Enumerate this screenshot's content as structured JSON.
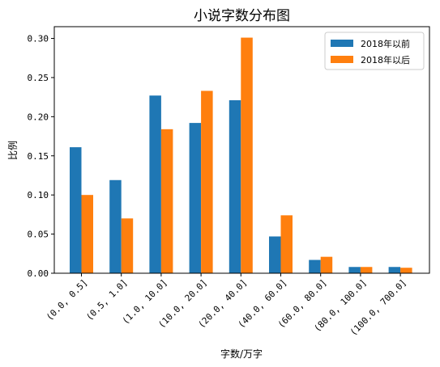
{
  "chart_data": {
    "type": "bar",
    "title": "小说字数分布图",
    "xlabel": "字数/万字",
    "ylabel": "比例",
    "ylim": [
      0,
      0.315
    ],
    "yticks": [
      "0.00",
      "0.05",
      "0.10",
      "0.15",
      "0.20",
      "0.25",
      "0.30"
    ],
    "categories": [
      "(0.0, 0.5]",
      "(0.5, 1.0]",
      "(1.0, 10.0]",
      "(10.0, 20.0]",
      "(20.0, 40.0]",
      "(40.0, 60.0]",
      "(60.0, 80.0]",
      "(80.0, 100.0]",
      "(100.0, 700.0]"
    ],
    "series": [
      {
        "name": "2018年以前",
        "color": "#1f77b4",
        "values": [
          0.161,
          0.119,
          0.227,
          0.192,
          0.221,
          0.047,
          0.017,
          0.008,
          0.008
        ]
      },
      {
        "name": "2018年以后",
        "color": "#ff7f0e",
        "values": [
          0.1,
          0.07,
          0.184,
          0.233,
          0.301,
          0.074,
          0.021,
          0.008,
          0.007
        ]
      }
    ],
    "legend_position": "top-right",
    "grid": false
  }
}
